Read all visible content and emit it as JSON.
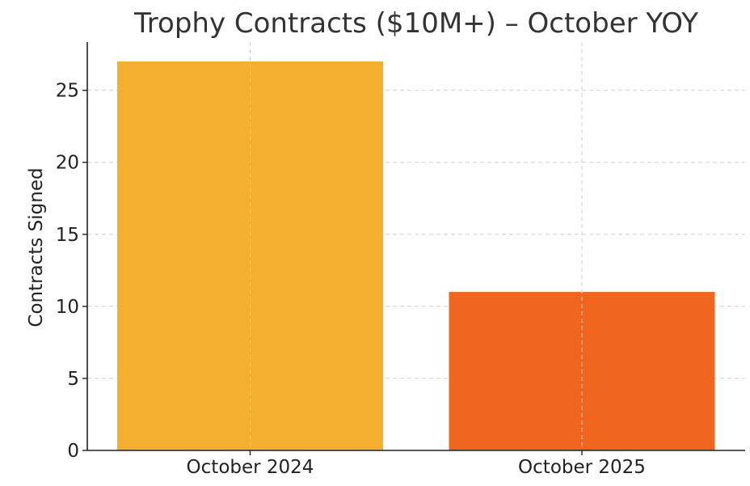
{
  "chart_data": {
    "type": "bar",
    "title": "Trophy Contracts ($10M+) – October YOY",
    "xlabel": "",
    "ylabel": "Contracts Signed",
    "categories": [
      "October 2024",
      "October 2025"
    ],
    "values": [
      27,
      11
    ],
    "colors": [
      "#F4AF31",
      "#F1661E"
    ],
    "ylim": [
      0,
      28.35
    ],
    "yticks": [
      0,
      5,
      10,
      15,
      20,
      25
    ],
    "grid": true
  }
}
